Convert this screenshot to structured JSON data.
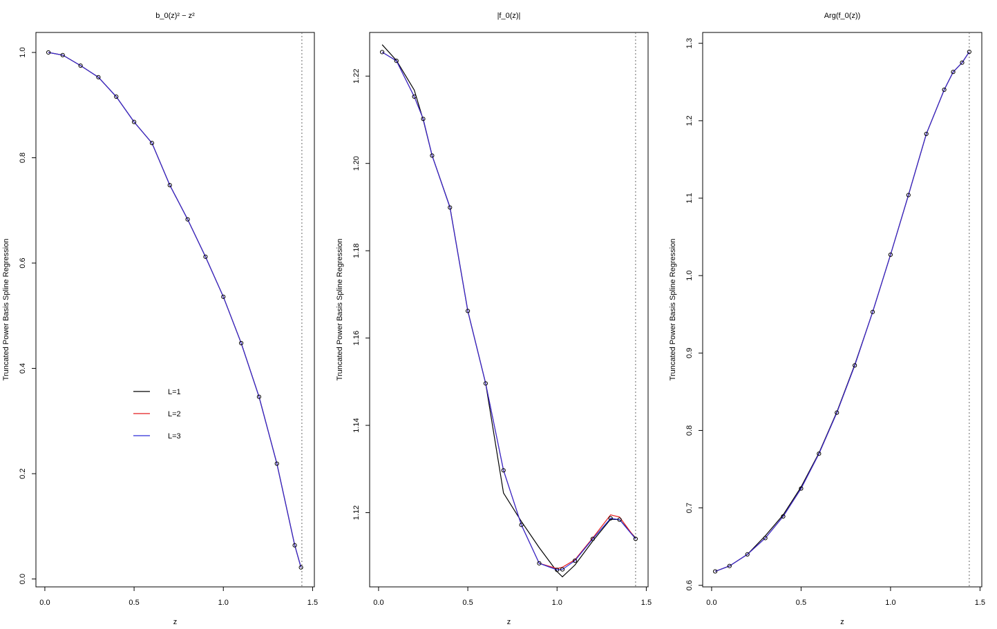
{
  "chart_data": [
    {
      "type": "line",
      "title": "b_0(z)² − z²",
      "xlabel": "z",
      "ylabel": "Truncated Power Basis Spline Regression",
      "xlim": [
        -0.05,
        1.51
      ],
      "ylim": [
        -0.015,
        1.038
      ],
      "xticks": [
        {
          "value": 0,
          "label": "0.0"
        },
        0.5,
        {
          "value": 1,
          "label": "1.0"
        },
        1.5
      ],
      "yticks": [
        {
          "value": 0,
          "label": "0.0"
        },
        0.2,
        0.4,
        0.6,
        0.8,
        {
          "value": 1,
          "label": "1.0"
        }
      ],
      "vline": 1.44,
      "legend": true,
      "x": [
        0.02,
        0.1,
        0.2,
        0.3,
        0.4,
        0.5,
        0.6,
        0.7,
        0.8,
        0.9,
        1.0,
        1.1,
        1.2,
        1.3,
        1.4,
        1.435
      ],
      "series": [
        {
          "name": "L=1",
          "color": "#000000",
          "values": [
            1.0,
            0.995,
            0.975,
            0.953,
            0.916,
            0.868,
            0.828,
            0.748,
            0.683,
            0.612,
            0.536,
            0.448,
            0.346,
            0.219,
            0.064,
            0.022
          ]
        },
        {
          "name": "L=2",
          "color": "#e41a1c",
          "values": [
            1.0,
            0.995,
            0.975,
            0.953,
            0.916,
            0.868,
            0.828,
            0.748,
            0.683,
            0.612,
            0.536,
            0.448,
            0.346,
            0.219,
            0.064,
            0.022
          ]
        },
        {
          "name": "L=3",
          "color": "#2b2bd6",
          "values": [
            1.0,
            0.995,
            0.975,
            0.953,
            0.916,
            0.868,
            0.828,
            0.748,
            0.683,
            0.612,
            0.536,
            0.448,
            0.346,
            0.219,
            0.064,
            0.022
          ]
        }
      ],
      "points": {
        "x": [
          0.02,
          0.1,
          0.2,
          0.3,
          0.4,
          0.5,
          0.6,
          0.7,
          0.8,
          0.9,
          1.0,
          1.1,
          1.2,
          1.3,
          1.4,
          1.435
        ],
        "y": [
          1.0,
          0.995,
          0.975,
          0.953,
          0.916,
          0.868,
          0.828,
          0.748,
          0.683,
          0.612,
          0.536,
          0.448,
          0.346,
          0.219,
          0.064,
          0.022
        ]
      }
    },
    {
      "type": "line",
      "title": "|f_0(z)|",
      "xlabel": "z",
      "ylabel": "Truncated Power Basis Spline Regression",
      "xlim": [
        -0.05,
        1.51
      ],
      "ylim": [
        1.103,
        1.23
      ],
      "xticks": [
        {
          "value": 0,
          "label": "0.0"
        },
        0.5,
        {
          "value": 1,
          "label": "1.0"
        },
        1.5
      ],
      "yticks": [
        1.12,
        1.14,
        1.16,
        1.18,
        {
          "value": 1.2,
          "label": "1.20"
        },
        1.22
      ],
      "vline": 1.44,
      "legend": false,
      "x": [
        0.02,
        0.1,
        0.2,
        0.25,
        0.3,
        0.4,
        0.5,
        0.6,
        0.7,
        0.8,
        0.9,
        1.0,
        1.03,
        1.1,
        1.2,
        1.3,
        1.35,
        1.44
      ],
      "series": [
        {
          "color": "#000000",
          "values": [
            1.2272,
            1.2236,
            1.2168,
            1.21,
            1.2018,
            1.19,
            1.1662,
            1.1496,
            1.1245,
            1.118,
            1.112,
            1.1065,
            1.1053,
            1.108,
            1.1135,
            1.1185,
            1.1184,
            1.1142
          ]
        },
        {
          "color": "#e41a1c",
          "values": [
            1.2255,
            1.2235,
            1.2153,
            1.2102,
            1.2018,
            1.1899,
            1.1662,
            1.1496,
            1.1297,
            1.1172,
            1.1084,
            1.1072,
            1.1075,
            1.1092,
            1.1142,
            1.1195,
            1.119,
            1.114
          ]
        },
        {
          "color": "#2b2bd6",
          "values": [
            1.2255,
            1.2235,
            1.2153,
            1.2102,
            1.2018,
            1.1899,
            1.1662,
            1.1496,
            1.1297,
            1.1172,
            1.1084,
            1.1069,
            1.107,
            1.109,
            1.114,
            1.1187,
            1.1184,
            1.114
          ]
        }
      ],
      "points": {
        "x": [
          0.02,
          0.1,
          0.2,
          0.25,
          0.3,
          0.4,
          0.5,
          0.6,
          0.7,
          0.8,
          0.9,
          1.0,
          1.03,
          1.1,
          1.2,
          1.3,
          1.35,
          1.44
        ],
        "y": [
          1.2255,
          1.2235,
          1.2153,
          1.2102,
          1.2018,
          1.1899,
          1.1662,
          1.1496,
          1.1297,
          1.1172,
          1.1084,
          1.1069,
          1.107,
          1.109,
          1.114,
          1.1187,
          1.1184,
          1.114
        ]
      }
    },
    {
      "type": "line",
      "title": "Arg(f_0(z))",
      "xlabel": "z",
      "ylabel": "Truncated Power Basis Spline Regression",
      "xlim": [
        -0.05,
        1.51
      ],
      "ylim": [
        0.598,
        1.314
      ],
      "xticks": [
        {
          "value": 0,
          "label": "0.0"
        },
        0.5,
        {
          "value": 1,
          "label": "1.0"
        },
        1.5
      ],
      "yticks": [
        0.6,
        0.7,
        0.8,
        0.9,
        {
          "value": 1,
          "label": "1.0"
        },
        1.1,
        1.2,
        1.3
      ],
      "vline": 1.44,
      "legend": false,
      "x": [
        0.02,
        0.1,
        0.2,
        0.3,
        0.4,
        0.5,
        0.6,
        0.7,
        0.8,
        0.9,
        1.0,
        1.1,
        1.2,
        1.3,
        1.35,
        1.4,
        1.44
      ],
      "series": [
        {
          "color": "#000000",
          "values": [
            0.618,
            0.625,
            0.64,
            0.664,
            0.691,
            0.727,
            0.771,
            0.824,
            0.885,
            0.953,
            1.027,
            1.104,
            1.183,
            1.24,
            1.263,
            1.275,
            1.289
          ]
        },
        {
          "color": "#e41a1c",
          "values": [
            0.618,
            0.625,
            0.64,
            0.661,
            0.689,
            0.725,
            0.77,
            0.823,
            0.884,
            0.953,
            1.027,
            1.104,
            1.183,
            1.24,
            1.263,
            1.275,
            1.289
          ]
        },
        {
          "color": "#2b2bd6",
          "values": [
            0.618,
            0.625,
            0.64,
            0.661,
            0.689,
            0.725,
            0.77,
            0.823,
            0.884,
            0.953,
            1.027,
            1.104,
            1.183,
            1.24,
            1.263,
            1.275,
            1.289
          ]
        }
      ],
      "points": {
        "x": [
          0.02,
          0.1,
          0.2,
          0.3,
          0.4,
          0.5,
          0.6,
          0.7,
          0.8,
          0.9,
          1.0,
          1.1,
          1.2,
          1.3,
          1.35,
          1.4,
          1.44
        ],
        "y": [
          0.618,
          0.625,
          0.64,
          0.661,
          0.689,
          0.725,
          0.77,
          0.823,
          0.884,
          0.953,
          1.027,
          1.104,
          1.183,
          1.24,
          1.263,
          1.275,
          1.289
        ]
      }
    }
  ]
}
